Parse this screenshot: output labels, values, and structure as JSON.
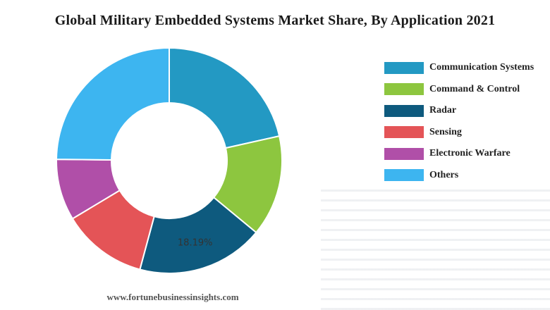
{
  "chart_data": {
    "type": "pie",
    "title": "Global Military Embedded Systems Market Share, By Application 2021",
    "categories": [
      "Communication Systems",
      "Command & Control",
      "Radar",
      "Sensing",
      "Electronic Warfare",
      "Others"
    ],
    "values": [
      21.5,
      14.5,
      18.19,
      12.2,
      8.8,
      24.81
    ],
    "colors": [
      "#2399c3",
      "#8dc63f",
      "#0e5a7e",
      "#e45457",
      "#b04fa8",
      "#3db5f0"
    ],
    "data_labels": [
      {
        "category": "Radar",
        "text": "18.19%"
      }
    ],
    "legend_position": "right"
  },
  "source": "www.fortunebusinessinsights.com"
}
